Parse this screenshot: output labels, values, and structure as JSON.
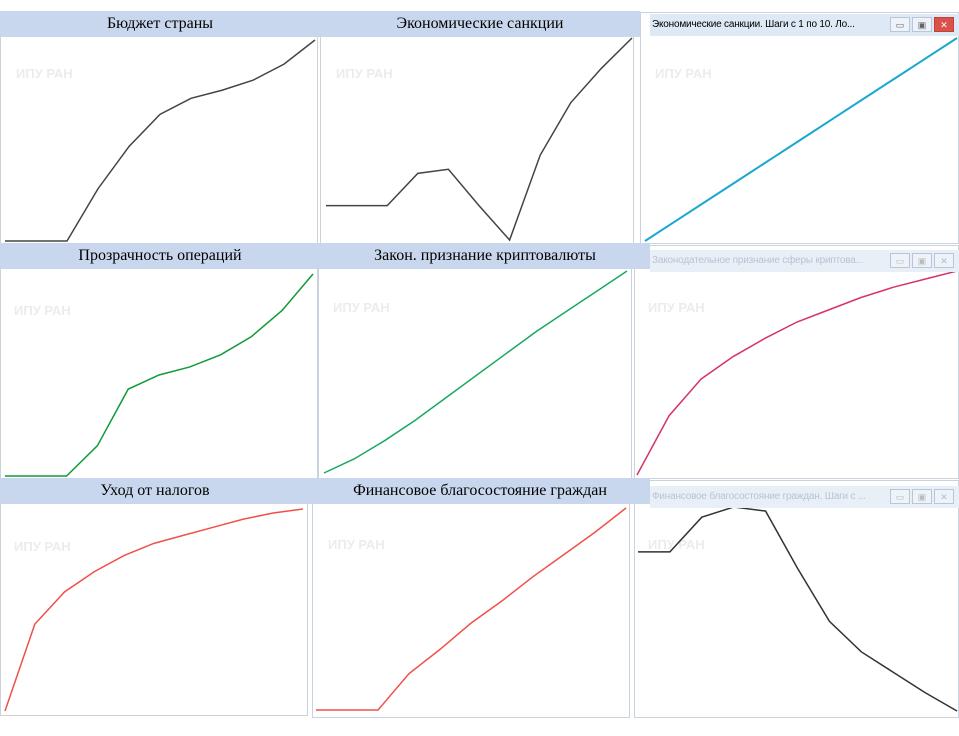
{
  "watermark": "ИПУ РАН",
  "window_buttons": {
    "minimize": "▭",
    "maximize": "▣",
    "close": "✕"
  },
  "window_titles": [
    "Экономические санкции. Шаги с 1 по 10. Ло...",
    "Законодательное признание сферы криптова...",
    "Финансовое благосостояние граждан. Шаги с ..."
  ],
  "chart_data": [
    {
      "type": "line",
      "title": "Бюджет страны",
      "x": [
        0,
        1,
        2,
        3,
        4,
        5,
        6,
        7,
        8,
        9,
        10
      ],
      "values": [
        0,
        0,
        0,
        26,
        47,
        63,
        71,
        75,
        80,
        88,
        100
      ],
      "color": "#444444"
    },
    {
      "type": "line",
      "title": "Экономические санкции",
      "x": [
        0,
        1,
        2,
        3,
        4,
        5,
        6,
        7,
        8,
        9,
        10
      ],
      "values": [
        17,
        17,
        17,
        33,
        35,
        17,
        0,
        42,
        68,
        85,
        100
      ],
      "color": "#444444"
    },
    {
      "type": "line",
      "title": "",
      "x": [
        0,
        1,
        2,
        3,
        4,
        5,
        6,
        7,
        8,
        9,
        10
      ],
      "values": [
        0,
        10,
        20,
        30,
        40,
        50,
        60,
        70,
        80,
        90,
        100
      ],
      "color": "#1aa7d0"
    },
    {
      "type": "line",
      "title": "Прозрачность операций",
      "x": [
        0,
        1,
        2,
        3,
        4,
        5,
        6,
        7,
        8,
        9,
        10
      ],
      "values": [
        0,
        0,
        0,
        15,
        43,
        50,
        54,
        60,
        69,
        82,
        100
      ],
      "color": "#119a3a"
    },
    {
      "type": "line",
      "title": "Закон. признание криптовалюты",
      "x": [
        0,
        1,
        2,
        3,
        4,
        5,
        6,
        7,
        8,
        9,
        10
      ],
      "values": [
        0,
        7,
        16,
        26,
        37,
        48,
        59,
        70,
        80,
        90,
        100
      ],
      "color": "#1aa860"
    },
    {
      "type": "line",
      "title": "",
      "x": [
        0,
        1,
        2,
        3,
        4,
        5,
        6,
        7,
        8,
        9,
        10
      ],
      "values": [
        0,
        29,
        47,
        58,
        67,
        75,
        81,
        87,
        92,
        96,
        100
      ],
      "color": "#d6336c"
    },
    {
      "type": "line",
      "title": "Уход от налогов",
      "x": [
        0,
        1,
        2,
        3,
        4,
        5,
        6,
        7,
        8,
        9,
        10
      ],
      "values": [
        0,
        43,
        59,
        69,
        77,
        83,
        87,
        91,
        95,
        98,
        100
      ],
      "color": "#f0504a"
    },
    {
      "type": "line",
      "title": "Финансовое благосостояние граждан",
      "x": [
        0,
        1,
        2,
        3,
        4,
        5,
        6,
        7,
        8,
        9,
        10
      ],
      "values": [
        0,
        0,
        0,
        18,
        30,
        43,
        54,
        66,
        77,
        88,
        100
      ],
      "color": "#f0504a"
    },
    {
      "type": "line",
      "title": "",
      "x": [
        0,
        1,
        2,
        3,
        4,
        5,
        6,
        7,
        8,
        9,
        10
      ],
      "values": [
        78,
        78,
        95,
        100,
        98,
        70,
        44,
        29,
        19,
        9,
        0
      ],
      "color": "#333333"
    }
  ]
}
